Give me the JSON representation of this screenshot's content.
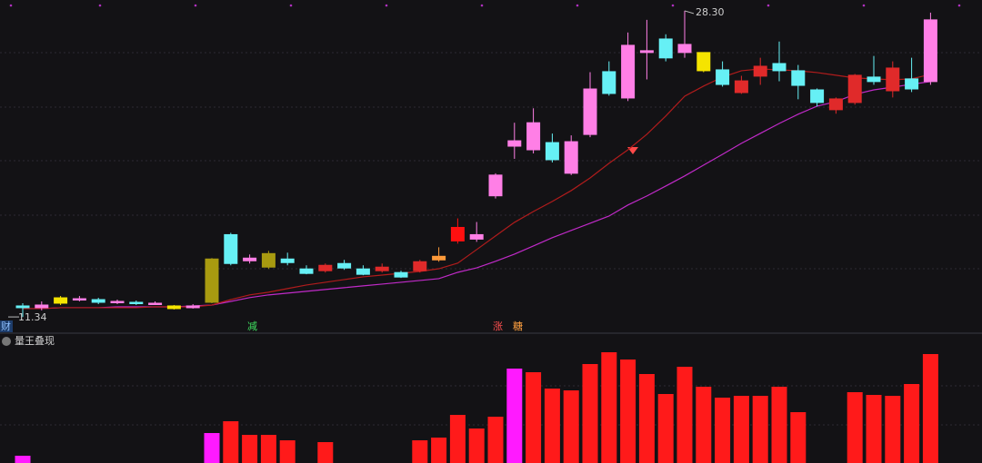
{
  "chart_data": [
    {
      "type": "candlestick",
      "open": [
        11.95,
        11.85,
        12.1,
        12.3,
        12.3,
        12.15,
        12.15,
        12.05,
        11.95,
        11.85,
        12.15,
        15.9,
        14.45,
        14.1,
        14.55,
        14.0,
        13.9,
        14.3,
        14.0,
        13.9,
        13.8,
        13.9,
        14.5,
        15.55,
        15.65,
        18.05,
        20.8,
        20.6,
        21.0,
        19.3,
        21.45,
        24.93,
        23.47,
        25.99,
        26.74,
        25.99,
        25.99,
        25.03,
        23.77,
        24.68,
        25.38,
        24.98,
        23.92,
        22.82,
        23.22,
        24.63,
        23.87,
        24.53,
        24.38
      ],
      "high": [
        12.1,
        12.2,
        12.5,
        12.5,
        12.4,
        12.3,
        12.25,
        12.2,
        12.0,
        12.05,
        14.6,
        16.0,
        14.8,
        15.0,
        14.9,
        14.2,
        14.3,
        14.5,
        14.2,
        14.3,
        13.9,
        14.5,
        15.2,
        16.8,
        16.6,
        19.3,
        22.1,
        22.9,
        21.5,
        21.4,
        24.9,
        25.5,
        27.1,
        27.8,
        27.0,
        28.3,
        26.0,
        25.5,
        24.7,
        25.7,
        26.6,
        25.3,
        24.0,
        23.5,
        24.8,
        25.8,
        25.5,
        25.7,
        28.2
      ],
      "low": [
        11.34,
        11.7,
        12.0,
        12.2,
        12.05,
        12.05,
        12.0,
        12.0,
        11.75,
        11.8,
        12.1,
        14.2,
        14.3,
        14.0,
        14.2,
        13.7,
        13.8,
        13.95,
        13.65,
        13.8,
        13.5,
        13.8,
        14.4,
        15.4,
        15.5,
        17.9,
        20.1,
        20.4,
        19.9,
        19.2,
        21.3,
        23.6,
        23.3,
        24.5,
        25.5,
        25.7,
        24.9,
        24.1,
        23.7,
        24.2,
        24.4,
        23.4,
        23.0,
        22.6,
        23.1,
        24.2,
        23.5,
        23.8,
        24.2
      ],
      "close": [
        11.85,
        12.0,
        12.4,
        12.35,
        12.15,
        12.2,
        12.1,
        12.1,
        11.8,
        11.95,
        14.55,
        14.3,
        14.6,
        14.85,
        14.35,
        13.75,
        14.2,
        14.05,
        13.7,
        14.1,
        13.55,
        14.4,
        14.7,
        16.3,
        15.9,
        19.2,
        21.1,
        22.1,
        20.05,
        21.05,
        23.97,
        23.72,
        26.39,
        26.09,
        25.69,
        26.44,
        24.98,
        24.22,
        24.42,
        25.23,
        24.98,
        24.17,
        23.22,
        23.42,
        24.73,
        24.38,
        25.13,
        23.97,
        27.8
      ],
      "colors": [
        "#66f0f5",
        "#ff7fe6",
        "#f5e400",
        "#ff7fe6",
        "#66f0f5",
        "#ff7fe6",
        "#66f0f5",
        "#ff7fe6",
        "#f5e400",
        "#ff7fe6",
        "#a89a10",
        "#66f0f5",
        "#ff7fe6",
        "#a89a10",
        "#66f0f5",
        "#66f0f5",
        "#e02a2a",
        "#66f0f5",
        "#66f0f5",
        "#e02a2a",
        "#66f0f5",
        "#e02a2a",
        "#ff9a3a",
        "#ff1010",
        "#ff7fe6",
        "#ff7fe6",
        "#ff7fe6",
        "#ff7fe6",
        "#66f0f5",
        "#ff7fe6",
        "#ff7fe6",
        "#66f0f5",
        "#ff7fe6",
        "#ff7fe6",
        "#66f0f5",
        "#ff7fe6",
        "#f5e400",
        "#66f0f5",
        "#e02a2a",
        "#e02a2a",
        "#66f0f5",
        "#66f0f5",
        "#66f0f5",
        "#e02a2a",
        "#e02a2a",
        "#66f0f5",
        "#e02a2a",
        "#66f0f5",
        "#ff7fe6"
      ],
      "lines": [
        {
          "color": "#c02ac8",
          "values": [
            11.8,
            11.8,
            11.85,
            11.85,
            11.85,
            11.9,
            11.9,
            11.9,
            11.9,
            11.95,
            12.0,
            12.2,
            12.41,
            12.56,
            12.66,
            12.76,
            12.86,
            12.96,
            13.06,
            13.16,
            13.26,
            13.36,
            13.46,
            13.81,
            14.06,
            14.42,
            14.82,
            15.27,
            15.73,
            16.13,
            16.53,
            16.93,
            17.54,
            18.04,
            18.59,
            19.15,
            19.75,
            20.35,
            20.96,
            21.51,
            22.06,
            22.57,
            23.02,
            23.27,
            23.67,
            23.92,
            24.07,
            24.23,
            24.38
          ]
        },
        {
          "color": "#b01c1c",
          "values": [
            11.8,
            11.8,
            11.85,
            11.85,
            11.85,
            11.85,
            11.85,
            11.9,
            11.9,
            11.9,
            12.0,
            12.3,
            12.56,
            12.71,
            12.91,
            13.11,
            13.26,
            13.41,
            13.56,
            13.66,
            13.76,
            13.86,
            14.01,
            14.32,
            15.07,
            15.83,
            16.58,
            17.18,
            17.74,
            18.34,
            19.04,
            19.85,
            20.6,
            21.46,
            22.47,
            23.57,
            24.13,
            24.63,
            24.98,
            25.08,
            25.03,
            24.98,
            24.88,
            24.73,
            24.58,
            24.53,
            24.48,
            24.53,
            24.78
          ]
        }
      ],
      "ylim": [
        10.54,
        28.9
      ],
      "high_label": "28.30",
      "low_label": "11.34",
      "markers": [
        "财",
        "减",
        "涨",
        "糖"
      ]
    },
    {
      "type": "bar",
      "title": "量王叠现",
      "values": [
        8,
        null,
        null,
        null,
        null,
        null,
        null,
        null,
        null,
        null,
        33,
        46,
        31,
        31,
        25,
        null,
        23,
        null,
        null,
        null,
        null,
        25,
        28,
        53,
        38,
        51,
        104,
        100,
        82,
        80,
        109,
        122,
        114,
        98,
        76,
        106,
        84,
        72,
        74,
        74,
        84,
        56,
        null,
        null,
        78,
        75,
        74,
        87,
        120
      ],
      "colors": [
        "#ff1aff",
        null,
        null,
        null,
        null,
        null,
        null,
        null,
        null,
        null,
        "#ff1aff",
        "#ff1a1a",
        "#ff1a1a",
        "#ff1a1a",
        "#ff1a1a",
        null,
        "#ff1a1a",
        null,
        null,
        null,
        null,
        "#ff1a1a",
        "#ff1a1a",
        "#ff1a1a",
        "#ff1a1a",
        "#ff1a1a",
        "#ff1aff",
        "#ff1a1a",
        "#ff1a1a",
        "#ff1a1a",
        "#ff1a1a",
        "#ff1a1a",
        "#ff1a1a",
        "#ff1a1a",
        "#ff1a1a",
        "#ff1a1a",
        "#ff1a1a",
        "#ff1a1a",
        "#ff1a1a",
        "#ff1a1a",
        "#ff1a1a",
        "#ff1a1a",
        null,
        null,
        "#ff1a1a",
        "#ff1a1a",
        "#ff1a1a",
        "#ff1a1a",
        "#ff1a1a"
      ],
      "ylim": [
        0,
        130
      ]
    }
  ]
}
